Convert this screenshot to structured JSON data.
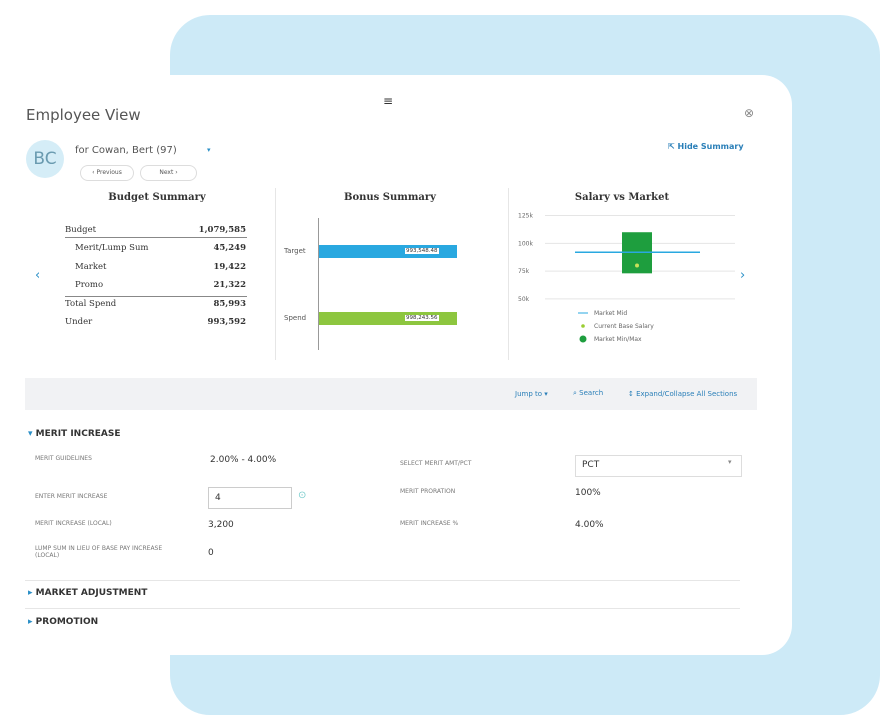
{
  "header": {
    "title": "Employee View",
    "initials": "BC",
    "employee": "for Cowan, Bert (97)",
    "previous": "Previous",
    "next": "Next",
    "hide_summary": "Hide Summary"
  },
  "budget_summary": {
    "title": "Budget Summary",
    "rows": [
      [
        "Budget",
        "1,079,585"
      ],
      [
        "Merit/Lump Sum",
        "45,249"
      ],
      [
        "Market",
        "19,422"
      ],
      [
        "Promo",
        "21,322"
      ],
      [
        "Total Spend",
        "85,993"
      ],
      [
        "Under",
        "993,592"
      ]
    ]
  },
  "bonus_summary": {
    "title": "Bonus Summary",
    "rows": [
      {
        "label": "Target",
        "value": "993,548.48"
      },
      {
        "label": "Spend",
        "value": "998,243.56"
      }
    ]
  },
  "salary_vs_market": {
    "title": "Salary vs Market",
    "ylim": [
      40000,
      130000
    ],
    "yticks": [
      {
        "value": 50000,
        "label": "50k"
      },
      {
        "value": 75000,
        "label": "75k"
      },
      {
        "value": 100000,
        "label": "100k"
      },
      {
        "value": 125000,
        "label": "125k"
      }
    ],
    "market_min": 73000,
    "market_max": 110000,
    "market_mid": 92000,
    "current_base_salary": 80000,
    "legend": [
      "Market Mid",
      "Current Base Salary",
      "Market Min/Max"
    ]
  },
  "toolbar": {
    "jump_to": "Jump to",
    "search": "Search",
    "expand": "Expand/Collapse All Sections"
  },
  "sections": {
    "merit": {
      "title": "MERIT INCREASE",
      "fields": [
        {
          "label": "MERIT GUIDELINES",
          "value": "2.00% - 4.00%"
        },
        {
          "label": "SELECT MERIT AMT/PCT",
          "value": "PCT"
        },
        {
          "label": "ENTER MERIT INCREASE",
          "value": "4"
        },
        {
          "label": "MERIT PRORATION",
          "value": "100%"
        },
        {
          "label": "MERIT INCREASE (LOCAL)",
          "value": "3,200"
        },
        {
          "label": "MERIT INCREASE %",
          "value": "4.00%"
        },
        {
          "label": "LUMP SUM IN LIEU OF BASE PAY INCREASE (LOCAL)",
          "value": "0"
        }
      ]
    },
    "market": "MARKET ADJUSTMENT",
    "promotion": "PROMOTION"
  }
}
